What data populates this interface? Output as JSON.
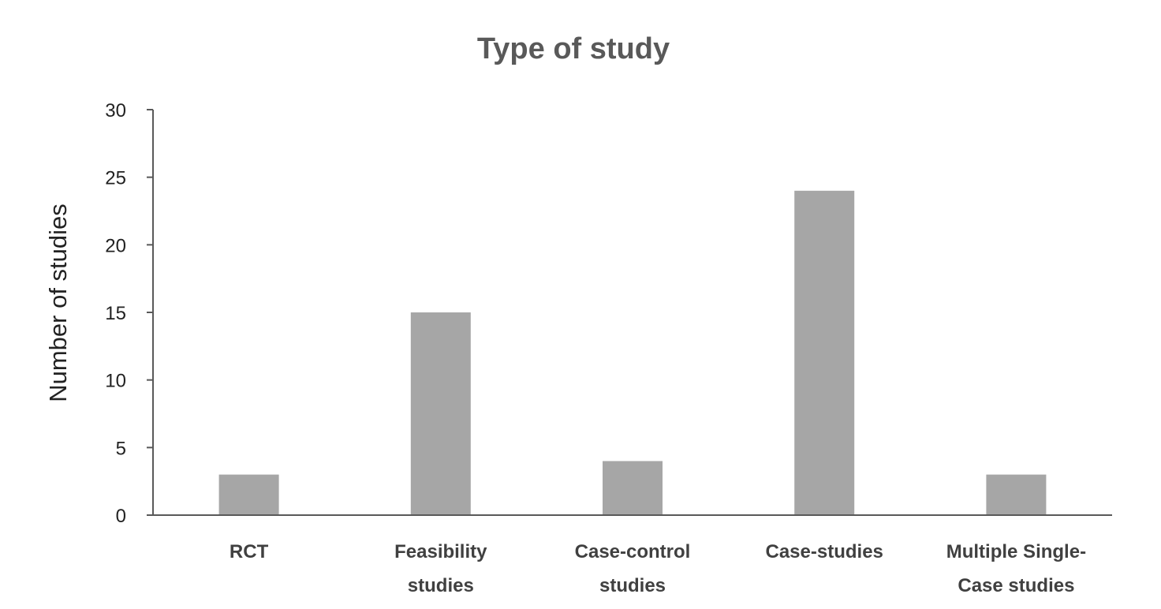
{
  "chart_data": {
    "type": "bar",
    "title": "Type of study",
    "xlabel": "",
    "ylabel": "Number of studies",
    "categories": [
      [
        "RCT"
      ],
      [
        "Feasibility",
        "studies"
      ],
      [
        "Case-control",
        "studies"
      ],
      [
        "Case-studies"
      ],
      [
        "Multiple Single-",
        "Case studies"
      ]
    ],
    "values": [
      3,
      15,
      4,
      24,
      3
    ],
    "ylim": [
      0,
      30
    ],
    "yticks": [
      0,
      5,
      10,
      15,
      20,
      25,
      30
    ],
    "grid": false,
    "legend": "none",
    "colors": {
      "bar": "#a6a6a6",
      "axis": "#595959",
      "title": "#595959"
    }
  }
}
